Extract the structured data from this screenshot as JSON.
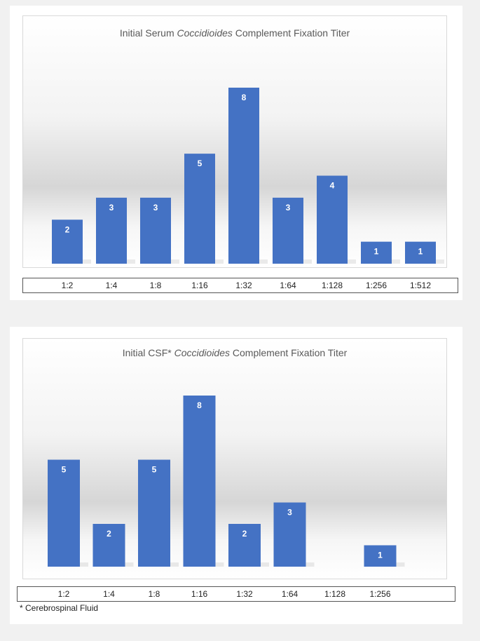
{
  "chart_data": [
    {
      "type": "bar",
      "title_prefix": "Initial Serum ",
      "title_italic": "Coccidioides",
      "title_suffix": " Complement Fixation Titer",
      "categories": [
        "1:2",
        "1:4",
        "1:8",
        "1:16",
        "1:32",
        "1:64",
        "1:128",
        "1:256",
        "1:512"
      ],
      "values": [
        2,
        3,
        3,
        5,
        8,
        3,
        4,
        1,
        1
      ],
      "ylim": [
        0,
        8
      ],
      "grid": false,
      "bar_color": "#4472c4",
      "label_color": "#ffffff"
    },
    {
      "type": "bar",
      "title_prefix": "Initial CSF* ",
      "title_italic": "Coccidioides",
      "title_suffix": " Complement Fixation Titer",
      "categories": [
        "1:2",
        "1:4",
        "1:8",
        "1:16",
        "1:32",
        "1:64",
        "1:128",
        "1:256"
      ],
      "values": [
        5,
        2,
        5,
        8,
        2,
        3,
        0,
        1
      ],
      "ylim": [
        0,
        8
      ],
      "grid": false,
      "bar_color": "#4472c4",
      "label_color": "#ffffff",
      "footnote": "* Cerebrospinal Fluid"
    }
  ]
}
